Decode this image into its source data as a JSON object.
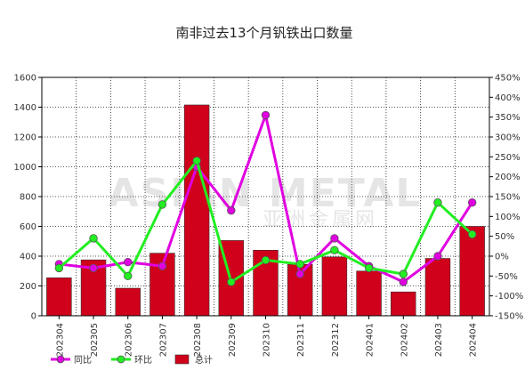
{
  "chart_data": {
    "type": "bar",
    "title": "南非过去13个月钒铁出口数量",
    "categories": [
      "202304",
      "202305",
      "202306",
      "202307",
      "202308",
      "202309",
      "202310",
      "202311",
      "202312",
      "202401",
      "202402",
      "202403",
      "202404"
    ],
    "series": [
      {
        "name": "总计",
        "kind": "bar",
        "axis": "left",
        "color": "#d0021b",
        "values": [
          255,
          375,
          185,
          420,
          1415,
          505,
          440,
          345,
          395,
          300,
          160,
          385,
          600
        ]
      },
      {
        "name": "同比",
        "kind": "line",
        "axis": "right",
        "color": "#e000e0",
        "values": [
          -20,
          -30,
          -15,
          -25,
          225,
          115,
          355,
          -45,
          45,
          -25,
          -65,
          0,
          135
        ]
      },
      {
        "name": "环比",
        "kind": "line",
        "axis": "right",
        "color": "#22ee22",
        "values": [
          -30,
          45,
          -50,
          130,
          240,
          -65,
          -10,
          -20,
          15,
          -30,
          -45,
          135,
          55
        ]
      }
    ],
    "ylim": [
      0,
      1600
    ],
    "yticks": [
      0,
      200,
      400,
      600,
      800,
      1000,
      1200,
      1400,
      1600
    ],
    "y2lim": [
      -150,
      450
    ],
    "y2ticks": [
      "-150%",
      "-100%",
      "-50%",
      "0%",
      "50%",
      "100%",
      "150%",
      "200%",
      "250%",
      "300%",
      "350%",
      "400%",
      "450%"
    ],
    "legend": [
      "同比",
      "环比",
      "总计"
    ],
    "legend_position": "bottom-left",
    "grid": true
  },
  "watermark": {
    "en": "ASIAN METAL",
    "cn": "亚洲金属网"
  },
  "colors": {
    "bar": "#d0021b",
    "yoy": "#e000e0",
    "mom": "#22ee22",
    "grid": "#000000"
  }
}
